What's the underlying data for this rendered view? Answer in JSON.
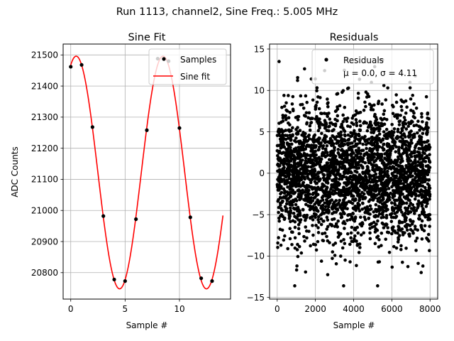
{
  "figure_title": "Run 1113, channel2, Sine Freq.: 5.005 MHz",
  "colors": {
    "samples": "#000000",
    "fit": "#ff0000",
    "grid": "#b0b0b0",
    "axes": "#000000"
  },
  "chart_data": [
    {
      "type": "line",
      "title": "Sine Fit",
      "xlabel": "Sample #",
      "ylabel": "ADC Counts",
      "xlim": [
        -0.7,
        14.7
      ],
      "ylim": [
        20715,
        21535
      ],
      "xticks": [
        0,
        5,
        10
      ],
      "xtick_labels": [
        "0",
        "5",
        "10"
      ],
      "yticks": [
        20800,
        20900,
        21000,
        21100,
        21200,
        21300,
        21400,
        21500
      ],
      "ytick_labels": [
        "20800",
        "20900",
        "21000",
        "21100",
        "21200",
        "21300",
        "21400",
        "21500"
      ],
      "grid": true,
      "legend_position": "top-right",
      "series": [
        {
          "name": "Samples",
          "kind": "scatter",
          "x": [
            0,
            1,
            2,
            3,
            4,
            5,
            6,
            7,
            8,
            9,
            10,
            11,
            12,
            13
          ],
          "y": [
            21462,
            21468,
            21268,
            20982,
            20778,
            20773,
            20972,
            21258,
            21488,
            21480,
            21265,
            20978,
            20782,
            20773
          ]
        },
        {
          "name": "Sine fit",
          "kind": "line",
          "model": {
            "offset": 21122,
            "amplitude": 374,
            "period": 7.99,
            "phase_deg": 67.5
          },
          "x_range": [
            0,
            14
          ]
        }
      ]
    },
    {
      "type": "scatter",
      "title": "Residuals",
      "xlabel": "Sample #",
      "ylabel": "",
      "xlim": [
        -400,
        8400
      ],
      "ylim": [
        -15.2,
        15.6
      ],
      "xticks": [
        0,
        2000,
        4000,
        6000,
        8000
      ],
      "xtick_labels": [
        "0",
        "2000",
        "4000",
        "6000",
        "8000"
      ],
      "yticks": [
        -15,
        -10,
        -5,
        0,
        5,
        10,
        15
      ],
      "ytick_labels": [
        "−15",
        "−10",
        "−5",
        "0",
        "5",
        "10",
        "15"
      ],
      "grid": true,
      "legend_position": "top-right",
      "series": [
        {
          "name": "Residuals",
          "legend_line2": "μ = 0.0, σ = 4.11",
          "n_points": 8000,
          "mean": 0.0,
          "std": 4.11,
          "min": -13.6,
          "max": 13.7
        }
      ]
    }
  ]
}
